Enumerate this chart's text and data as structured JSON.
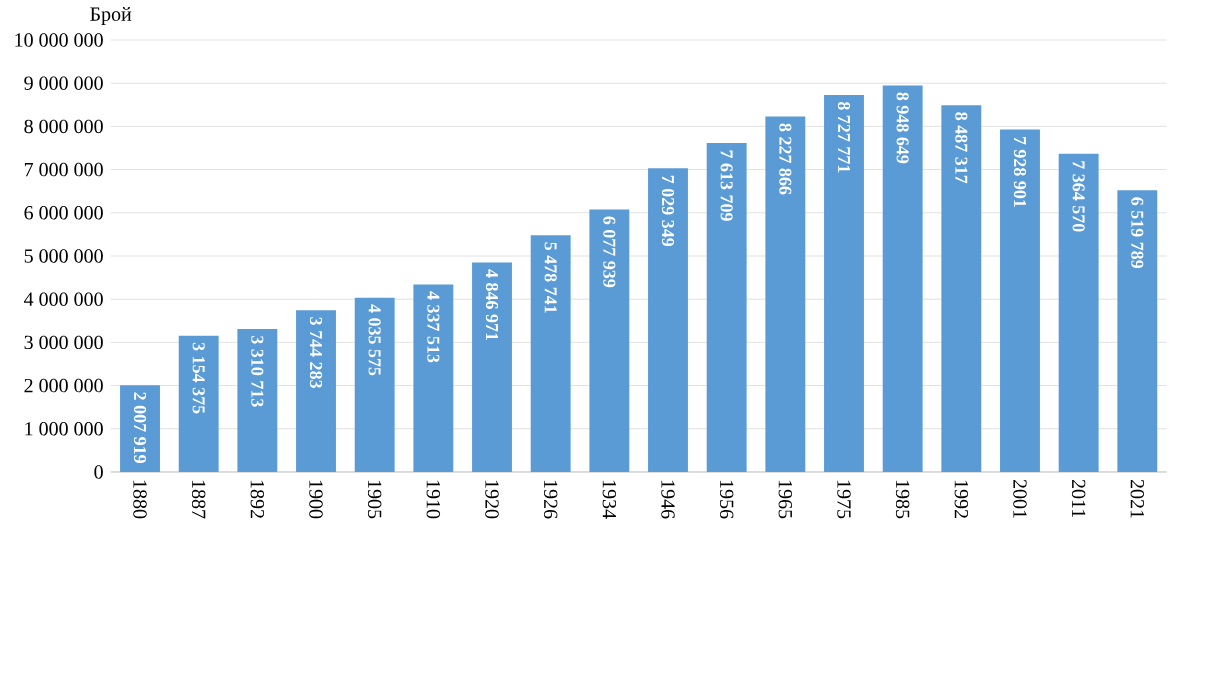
{
  "chart_data": {
    "type": "bar",
    "ylabel": "Брой",
    "categories": [
      "1880",
      "1887",
      "1892",
      "1900",
      "1905",
      "1910",
      "1920",
      "1926",
      "1934",
      "1946",
      "1956",
      "1965",
      "1975",
      "1985",
      "1992",
      "2001",
      "2011",
      "2021"
    ],
    "values": [
      2007919,
      3154375,
      3310713,
      3744283,
      4035575,
      4337513,
      4846971,
      5478741,
      6077939,
      7029349,
      7613709,
      8227866,
      8727771,
      8948649,
      8487317,
      7928901,
      7364570,
      6519789
    ],
    "value_labels": [
      "2 007 919",
      "3 154 375",
      "3 310 713",
      "3 744 283",
      "4 035 575",
      "4 337 513",
      "4 846 971",
      "5 478 741",
      "6 077 939",
      "7 029 349",
      "7 613 709",
      "8 227 866",
      "8 727 771",
      "8 948 649",
      "8 487 317",
      "7 928 901",
      "7 364 570",
      "6 519 789"
    ],
    "color": "#5b9bd5",
    "ylim": [
      0,
      10000000
    ],
    "yticks": [
      {
        "value": 0,
        "label": "0"
      },
      {
        "value": 1000000,
        "label": "1 000 000"
      },
      {
        "value": 2000000,
        "label": "2 000 000"
      },
      {
        "value": 3000000,
        "label": "3 000 000"
      },
      {
        "value": 4000000,
        "label": "4 000 000"
      },
      {
        "value": 5000000,
        "label": "5 000 000"
      },
      {
        "value": 6000000,
        "label": "6 000 000"
      },
      {
        "value": 7000000,
        "label": "7 000 000"
      },
      {
        "value": 8000000,
        "label": "8 000 000"
      },
      {
        "value": 9000000,
        "label": "9 000 000"
      },
      {
        "value": 10000000,
        "label": "10 000 000"
      }
    ],
    "grid": "y"
  }
}
